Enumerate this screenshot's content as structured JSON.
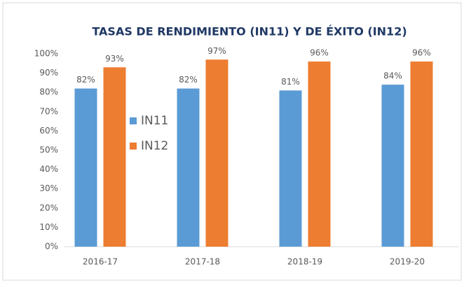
{
  "chart_data": {
    "type": "bar",
    "title": "TASAS DE RENDIMIENTO (IN11) Y DE ÉXITO (IN12)",
    "categories": [
      "2016-17",
      "2017-18",
      "2018-19",
      "2019-20"
    ],
    "series": [
      {
        "name": "IN11",
        "color": "#5b9bd5",
        "values": [
          82,
          82,
          81,
          84
        ],
        "value_labels": [
          "82%",
          "82%",
          "81%",
          "84%"
        ]
      },
      {
        "name": "IN12",
        "color": "#ed7d31",
        "values": [
          93,
          97,
          96,
          96
        ],
        "value_labels": [
          "93%",
          "97%",
          "96%",
          "96%"
        ]
      }
    ],
    "ylim": [
      0,
      100
    ],
    "yticks": [
      {
        "value": 0,
        "label": "0%"
      },
      {
        "value": 10,
        "label": "10%"
      },
      {
        "value": 20,
        "label": "20%"
      },
      {
        "value": 30,
        "label": "30%"
      },
      {
        "value": 40,
        "label": "40%"
      },
      {
        "value": 50,
        "label": "50%"
      },
      {
        "value": 60,
        "label": "60%"
      },
      {
        "value": 70,
        "label": "70%"
      },
      {
        "value": 80,
        "label": "80%"
      },
      {
        "value": 90,
        "label": "90%"
      },
      {
        "value": 100,
        "label": "100%"
      }
    ],
    "grid": false,
    "legend": "left"
  }
}
